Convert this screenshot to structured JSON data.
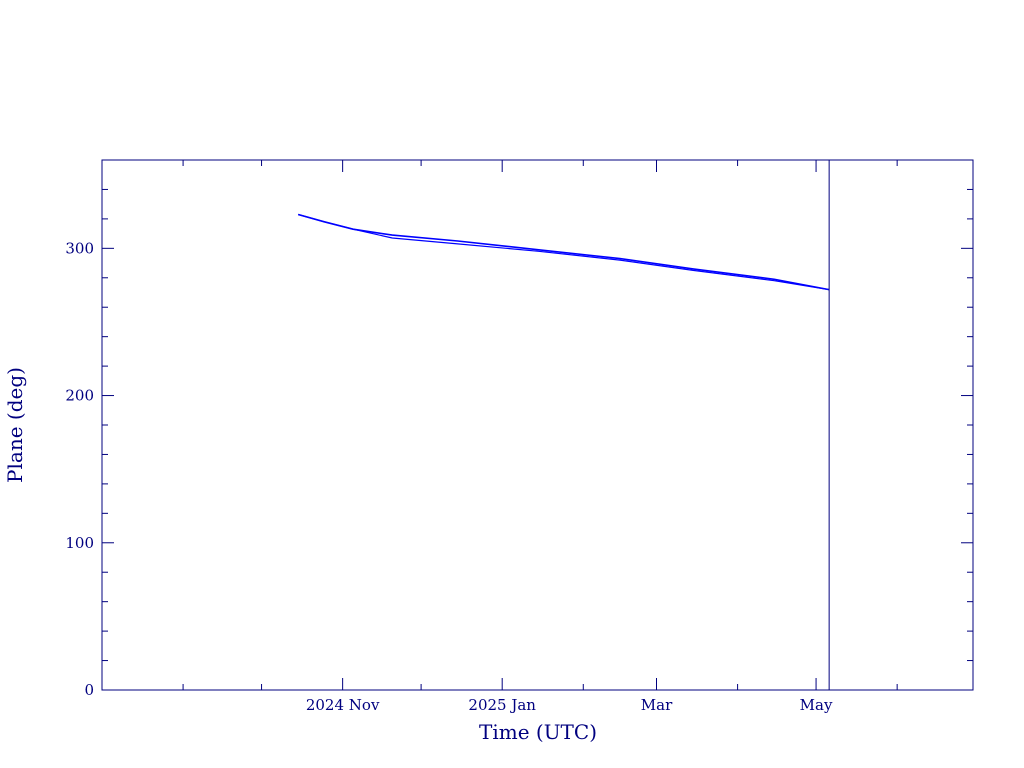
{
  "colors": {
    "axis": "#00007f",
    "series": "#0000ff",
    "marker_line": "#00007f"
  },
  "chart_data": {
    "type": "line",
    "title": "",
    "xlabel": "Time (UTC)",
    "ylabel": "Plane (deg)",
    "xlim": [
      "2024-08-01",
      "2025-06-30"
    ],
    "ylim": [
      0,
      360
    ],
    "x_ticks": [
      {
        "date": "2024-11-01",
        "label": "2024 Nov"
      },
      {
        "date": "2025-01-01",
        "label": "2025 Jan"
      },
      {
        "date": "2025-03-01",
        "label": "Mar"
      },
      {
        "date": "2025-05-01",
        "label": "May"
      }
    ],
    "y_ticks": [
      {
        "value": 0,
        "label": "0"
      },
      {
        "value": 100,
        "label": "100"
      },
      {
        "value": 200,
        "label": "200"
      },
      {
        "value": 300,
        "label": "300"
      }
    ],
    "vertical_marker": {
      "date": "2025-05-06"
    },
    "series": [
      {
        "color": "#0000ff",
        "x": [
          "2024-10-15",
          "2024-10-25",
          "2024-11-05",
          "2024-11-20",
          "2024-12-15",
          "2025-01-15",
          "2025-02-15",
          "2025-03-15",
          "2025-04-15",
          "2025-05-06"
        ],
        "y": [
          323,
          318,
          313,
          309,
          305,
          299,
          293,
          286,
          279,
          272
        ]
      },
      {
        "color": "#0000ff",
        "x": [
          "2024-10-15",
          "2024-10-25",
          "2024-11-05",
          "2024-11-20",
          "2024-12-15",
          "2025-01-15",
          "2025-02-15",
          "2025-03-15",
          "2025-04-15",
          "2025-05-06"
        ],
        "y": [
          323,
          318,
          313,
          307,
          303,
          298,
          292,
          285,
          278,
          272
        ]
      }
    ]
  }
}
